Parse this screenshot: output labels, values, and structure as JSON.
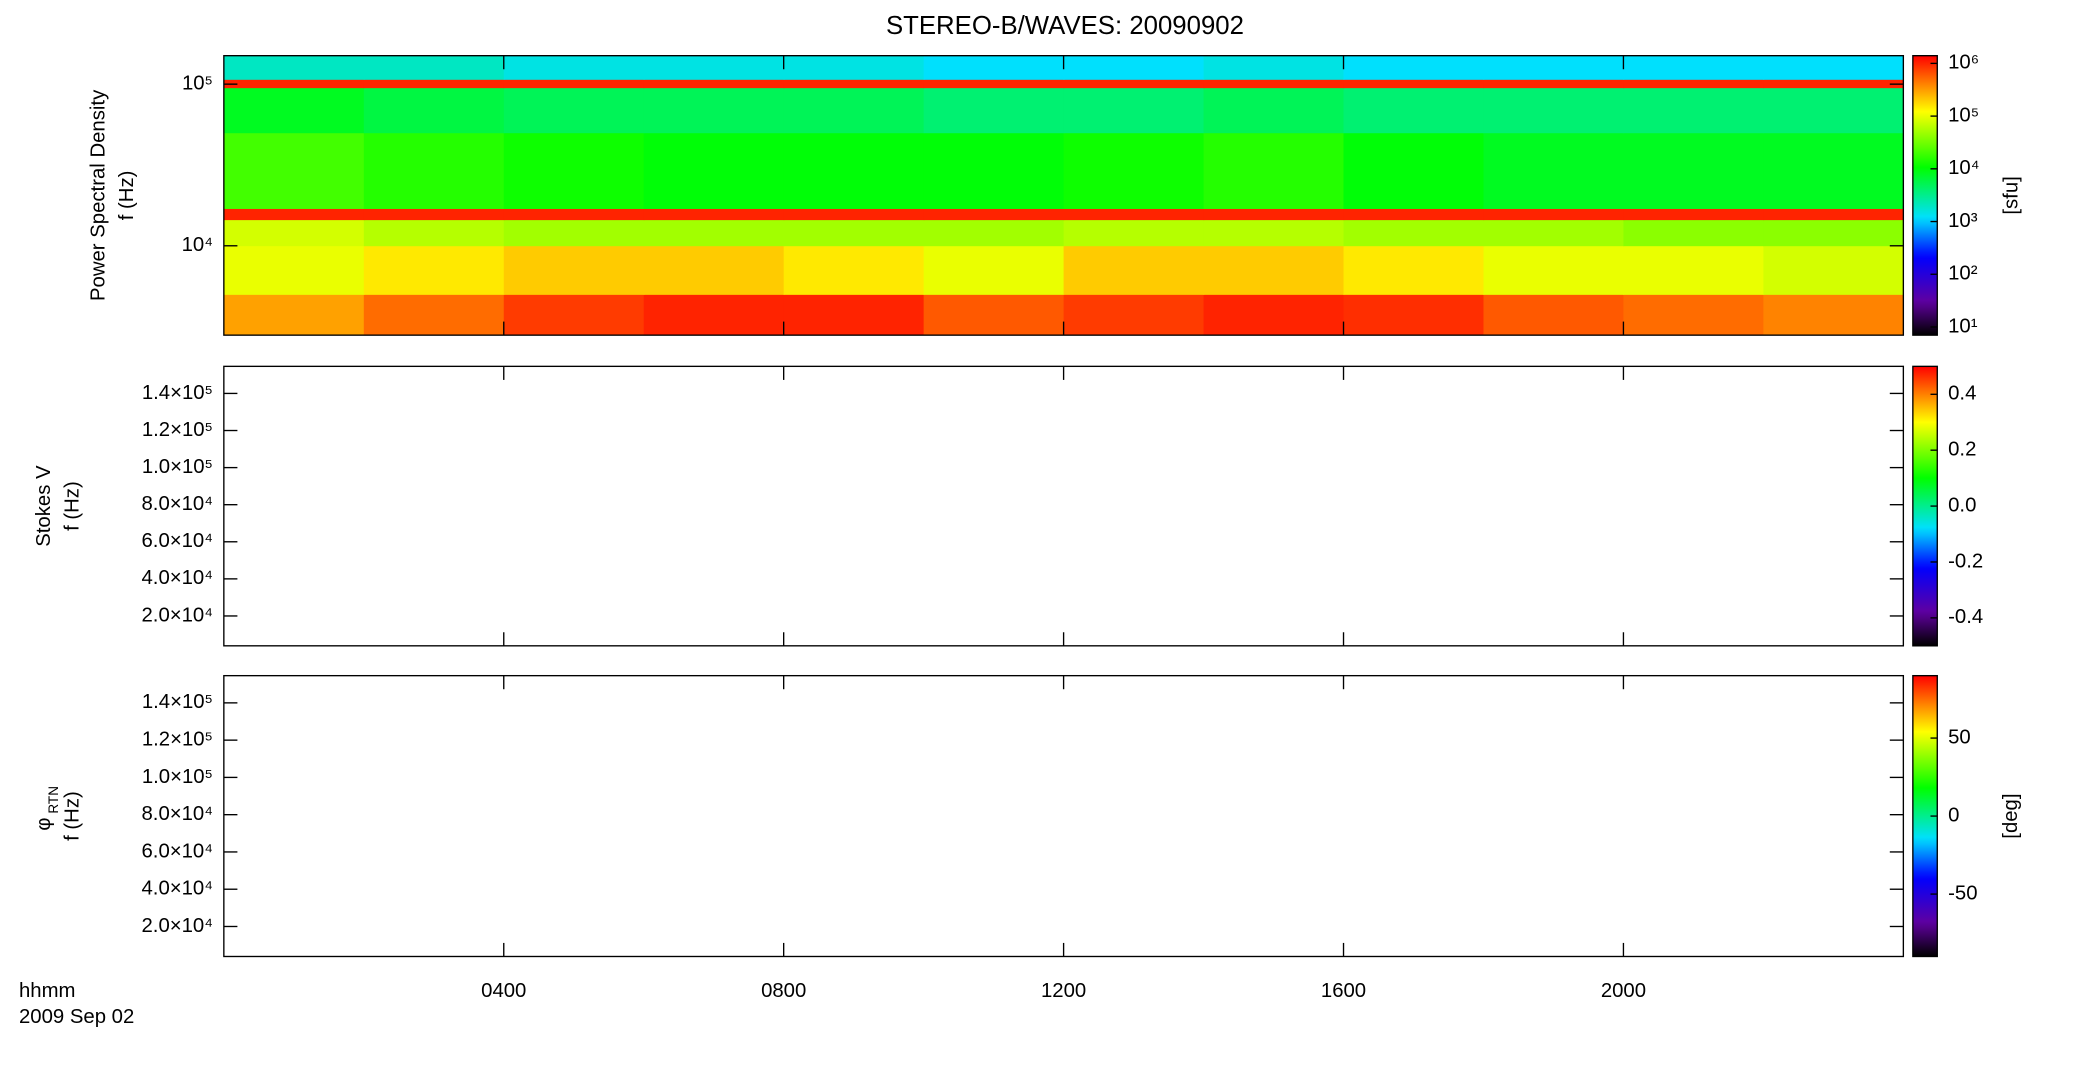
{
  "chart_data": [
    {
      "type": "heatmap",
      "title": "STEREO-B/WAVES: 20090902",
      "ylabel": [
        "Power Spectral Density",
        "f (Hz)"
      ],
      "ylog": true,
      "ylim": [
        2800,
        150000
      ],
      "yticks": [
        {
          "value": 10000,
          "label": "10⁴"
        },
        {
          "value": 100000,
          "label": "10⁵"
        }
      ],
      "x_bins": [
        0,
        2,
        4,
        6,
        8,
        10,
        12,
        14,
        16,
        18,
        20,
        22,
        24
      ],
      "y_bins": [
        2800,
        5000,
        10000,
        14500,
        17000,
        50000,
        95000,
        107000,
        150000
      ],
      "values": [
        [
          300000,
          500000,
          800000,
          1000000,
          1000000,
          600000,
          800000,
          1000000,
          900000,
          600000,
          500000,
          400000
        ],
        [
          100000,
          150000,
          200000,
          200000,
          150000,
          100000,
          200000,
          200000,
          150000,
          100000,
          100000,
          80000
        ],
        [
          80000,
          60000,
          50000,
          50000,
          50000,
          50000,
          60000,
          60000,
          50000,
          50000,
          40000,
          40000
        ],
        [
          1000000,
          1000000,
          1000000,
          1000000,
          1000000,
          1000000,
          1000000,
          1000000,
          1000000,
          1000000,
          1000000,
          1000000
        ],
        [
          20000,
          15000,
          12000,
          10000,
          10000,
          10000,
          12000,
          15000,
          10000,
          8000,
          8000,
          8000
        ],
        [
          8000,
          6000,
          5000,
          5000,
          5000,
          4000,
          4000,
          5000,
          4000,
          4000,
          4000,
          4000
        ],
        [
          1000000,
          1000000,
          1000000,
          1000000,
          1000000,
          1000000,
          1000000,
          1000000,
          1000000,
          1000000,
          1000000,
          1000000
        ],
        [
          2000,
          2000,
          1500,
          1500,
          1500,
          1200,
          1200,
          1500,
          1200,
          1200,
          1200,
          1200
        ]
      ],
      "zlog": true,
      "zlim": [
        7,
        1400000
      ],
      "zticks": [
        {
          "value": 10,
          "label": "10¹"
        },
        {
          "value": 100,
          "label": "10²"
        },
        {
          "value": 1000,
          "label": "10³"
        },
        {
          "value": 10000,
          "label": "10⁴"
        },
        {
          "value": 100000,
          "label": "10⁵"
        },
        {
          "value": 1000000,
          "label": "10⁶"
        }
      ],
      "zlabel": "[sfu]"
    },
    {
      "type": "heatmap",
      "ylabel": [
        "Stokes V",
        "f (Hz)"
      ],
      "ylim": [
        3900,
        154600
      ],
      "yticks": [
        {
          "value": 20000,
          "label": "2.0×10⁴"
        },
        {
          "value": 40000,
          "label": "4.0×10⁴"
        },
        {
          "value": 60000,
          "label": "6.0×10⁴"
        },
        {
          "value": 80000,
          "label": "8.0×10⁴"
        },
        {
          "value": 100000,
          "label": "1.0×10⁵"
        },
        {
          "value": 120000,
          "label": "1.2×10⁵"
        },
        {
          "value": 140000,
          "label": "1.4×10⁵"
        }
      ],
      "zlim": [
        -0.5,
        0.5
      ],
      "zticks": [
        -0.4,
        -0.2,
        {
          "value": 0,
          "label": "0.0"
        },
        0.2,
        0.4
      ]
    },
    {
      "type": "heatmap",
      "ylabel_symbol": "φ",
      "ylabel_subscript": "RTN",
      "ylabel": [
        "f (Hz)"
      ],
      "ylim": [
        3900,
        154600
      ],
      "yticks": [
        {
          "value": 20000,
          "label": "2.0×10⁴"
        },
        {
          "value": 40000,
          "label": "4.0×10⁴"
        },
        {
          "value": 60000,
          "label": "6.0×10⁴"
        },
        {
          "value": 80000,
          "label": "8.0×10⁴"
        },
        {
          "value": 100000,
          "label": "1.0×10⁵"
        },
        {
          "value": 120000,
          "label": "1.2×10⁵"
        },
        {
          "value": 140000,
          "label": "1.4×10⁵"
        }
      ],
      "zlim": [
        -90,
        90
      ],
      "zticks": [
        -50,
        0,
        50
      ],
      "zlabel": "[deg]",
      "xlabel": "hhmm",
      "date": "2009 Sep 02",
      "xlim": [
        0,
        24
      ],
      "xticks": [
        {
          "value": 4,
          "label": "0400"
        },
        {
          "value": 8,
          "label": "0800"
        },
        {
          "value": 12,
          "label": "1200"
        },
        {
          "value": 16,
          "label": "1600"
        },
        {
          "value": 20,
          "label": "2000"
        }
      ]
    }
  ]
}
